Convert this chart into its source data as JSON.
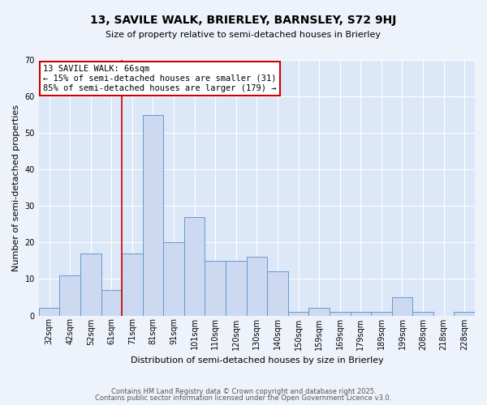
{
  "title": "13, SAVILE WALK, BRIERLEY, BARNSLEY, S72 9HJ",
  "subtitle": "Size of property relative to semi-detached houses in Brierley",
  "xlabel": "Distribution of semi-detached houses by size in Brierley",
  "ylabel": "Number of semi-detached properties",
  "footer1": "Contains HM Land Registry data © Crown copyright and database right 2025.",
  "footer2": "Contains public sector information licensed under the Open Government Licence v3.0.",
  "categories": [
    "32sqm",
    "42sqm",
    "52sqm",
    "61sqm",
    "71sqm",
    "81sqm",
    "91sqm",
    "101sqm",
    "110sqm",
    "120sqm",
    "130sqm",
    "140sqm",
    "150sqm",
    "159sqm",
    "169sqm",
    "179sqm",
    "189sqm",
    "199sqm",
    "208sqm",
    "218sqm",
    "228sqm"
  ],
  "bar_heights": [
    2,
    11,
    17,
    7,
    17,
    55,
    20,
    27,
    15,
    15,
    16,
    12,
    1,
    2,
    1,
    1,
    1,
    5,
    1,
    0,
    1
  ],
  "bar_color": "#ccd9f0",
  "bar_edge_color": "#6699cc",
  "background_color": "#eef3fb",
  "plot_bg_color": "#dce8f8",
  "grid_color": "#ffffff",
  "vline_color": "#cc0000",
  "annotation_title": "13 SAVILE WALK: 66sqm",
  "annotation_line1": "← 15% of semi-detached houses are smaller (31)",
  "annotation_line2": "85% of semi-detached houses are larger (179) →",
  "annotation_box_edge_color": "#cc0000",
  "ylim": [
    0,
    70
  ],
  "yticks": [
    0,
    10,
    20,
    30,
    40,
    50,
    60,
    70
  ],
  "title_fontsize": 10,
  "subtitle_fontsize": 8,
  "ylabel_fontsize": 8,
  "xlabel_fontsize": 8,
  "tick_fontsize": 7,
  "annotation_fontsize": 7.5,
  "footer_fontsize": 6
}
